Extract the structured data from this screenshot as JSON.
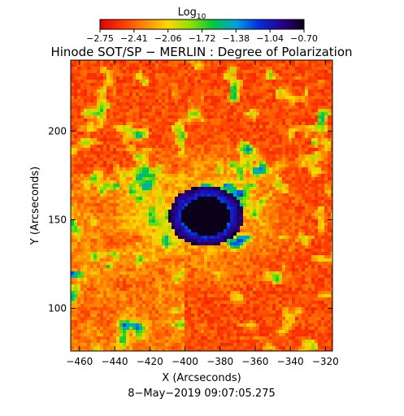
{
  "colorbar": {
    "label_main": "Log",
    "label_sub": "10",
    "tick_labels": [
      "−2.75",
      "−2.41",
      "−2.06",
      "−1.72",
      "−1.38",
      "−1.04",
      "−0.70"
    ],
    "range": [
      -2.75,
      -0.7
    ],
    "colors": [
      "#e00000",
      "#ff3a00",
      "#ff8a00",
      "#ffd800",
      "#8ee000",
      "#00c840",
      "#00a0e0",
      "#0030e0",
      "#2a0090",
      "#0a0018"
    ]
  },
  "chart_data": {
    "type": "heatmap",
    "title": "Hinode SOT/SP − MERLIN : Degree of Polarization",
    "xlabel": "X (Arcseconds)",
    "ylabel": "Y (Arcseconds)",
    "xlim": [
      -465,
      -316
    ],
    "ylim": [
      76,
      240
    ],
    "x_ticks": [
      -460,
      -440,
      -420,
      -400,
      -380,
      -360,
      -340,
      -320
    ],
    "y_ticks": [
      100,
      150,
      200
    ],
    "x_tick_labels": [
      "−460",
      "−440",
      "−420",
      "−400",
      "−380",
      "−360",
      "−340",
      "−320"
    ],
    "y_tick_labels": [
      "100",
      "150",
      "200"
    ],
    "colorbar_scale": "log10",
    "value_range": [
      -2.75,
      -0.7
    ],
    "features": {
      "umbra_center_xy": [
        -388,
        152
      ],
      "umbra_value": -0.72,
      "penumbra_value": -1.25,
      "background_value": -2.6
    }
  },
  "footer": {
    "timestamp": "8−May−2019 09:07:05.275"
  }
}
